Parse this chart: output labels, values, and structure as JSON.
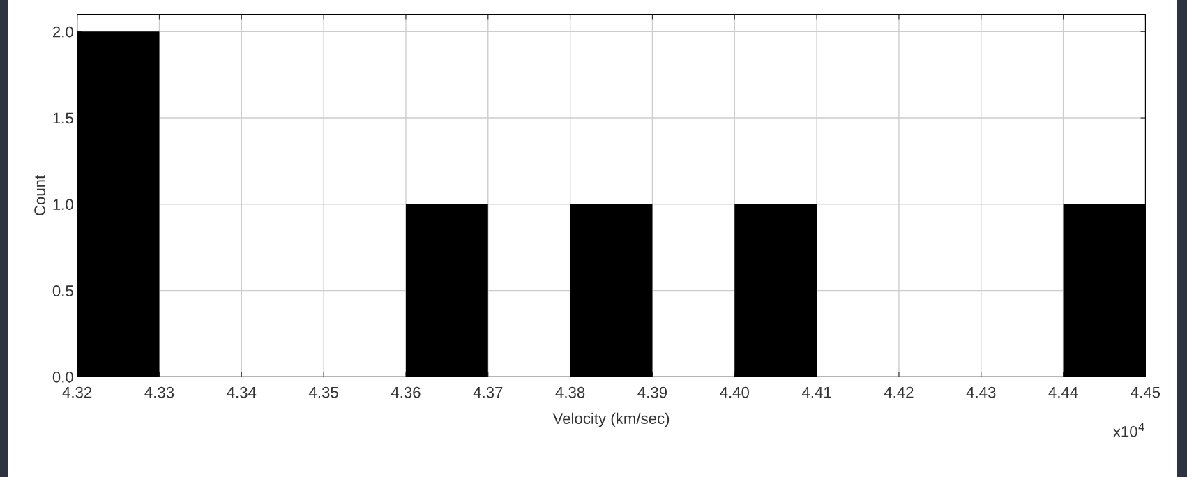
{
  "chart_data": {
    "type": "histogram",
    "xlabel": "Velocity (km/sec)",
    "ylabel": "Count",
    "bins": [
      4.32,
      4.33,
      4.34,
      4.35,
      4.36,
      4.37,
      4.38,
      4.39,
      4.4,
      4.41,
      4.42,
      4.43,
      4.44,
      4.45
    ],
    "values": [
      2,
      0,
      0,
      0,
      1,
      0,
      1,
      0,
      1,
      0,
      0,
      0,
      1
    ],
    "color": "#000000",
    "xlim": [
      4.32,
      4.45
    ],
    "xticks": [
      4.32,
      4.33,
      4.34,
      4.35,
      4.36,
      4.37,
      4.38,
      4.39,
      {
        "value": 4.4,
        "label": "4.40"
      },
      4.41,
      4.42,
      4.43,
      4.44,
      4.45
    ],
    "ylim": [
      0,
      2.1
    ],
    "yticks": [
      {
        "value": 0,
        "label": "0.0"
      },
      0.5,
      {
        "value": 1,
        "label": "1.0"
      },
      1.5,
      {
        "value": 2,
        "label": "2.0"
      }
    ],
    "grid": true,
    "annotations": [
      "x10$^{4}$"
    ]
  }
}
